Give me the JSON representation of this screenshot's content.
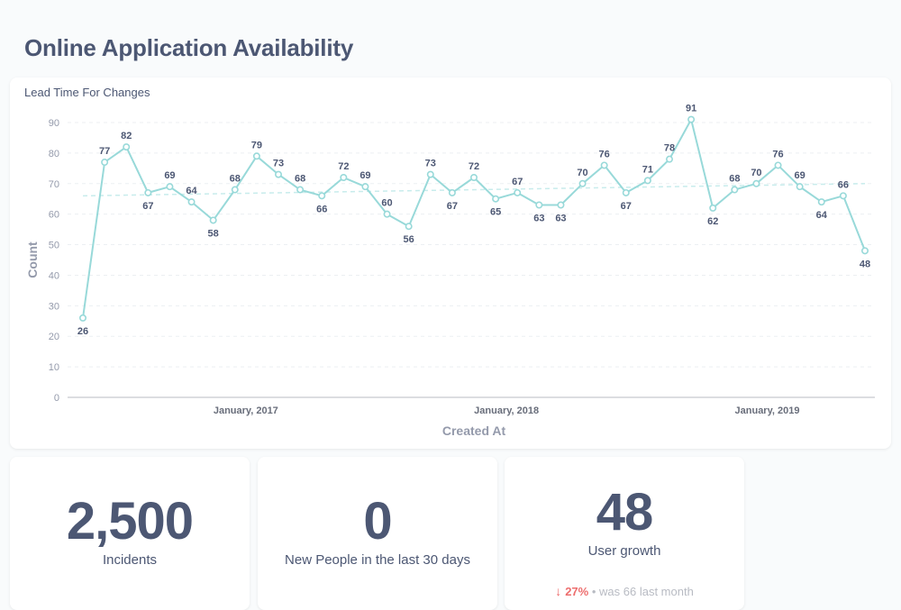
{
  "dashboard": {
    "title": "Online Application Availability"
  },
  "chart_card": {
    "title": "Lead Time For Changes"
  },
  "chart_data": {
    "type": "line",
    "xlabel": "Created At",
    "ylabel": "Count",
    "ylim": [
      0,
      90
    ],
    "yticks": [
      0,
      10,
      20,
      30,
      40,
      50,
      60,
      70,
      80,
      90
    ],
    "x_tick_labels": [
      "January, 2017",
      "January, 2018",
      "January, 2019"
    ],
    "x_tick_index": [
      7.5,
      19.5,
      31.5
    ],
    "values": [
      26,
      77,
      82,
      67,
      69,
      64,
      58,
      68,
      79,
      73,
      68,
      66,
      72,
      69,
      60,
      56,
      73,
      67,
      72,
      65,
      67,
      63,
      63,
      70,
      76,
      67,
      71,
      78,
      91,
      62,
      68,
      70,
      76,
      69,
      64,
      66,
      48
    ],
    "trend_line": [
      66,
      70
    ],
    "grid": true,
    "color": "#98d9d9"
  },
  "stats": {
    "incidents": {
      "value": "2,500",
      "label": "Incidents"
    },
    "people": {
      "value": "0",
      "label": "New People in the last 30 days"
    },
    "growth": {
      "value": "48",
      "label": "User growth",
      "change": "27%",
      "sep": "•",
      "previous": "was 66 last month"
    }
  }
}
